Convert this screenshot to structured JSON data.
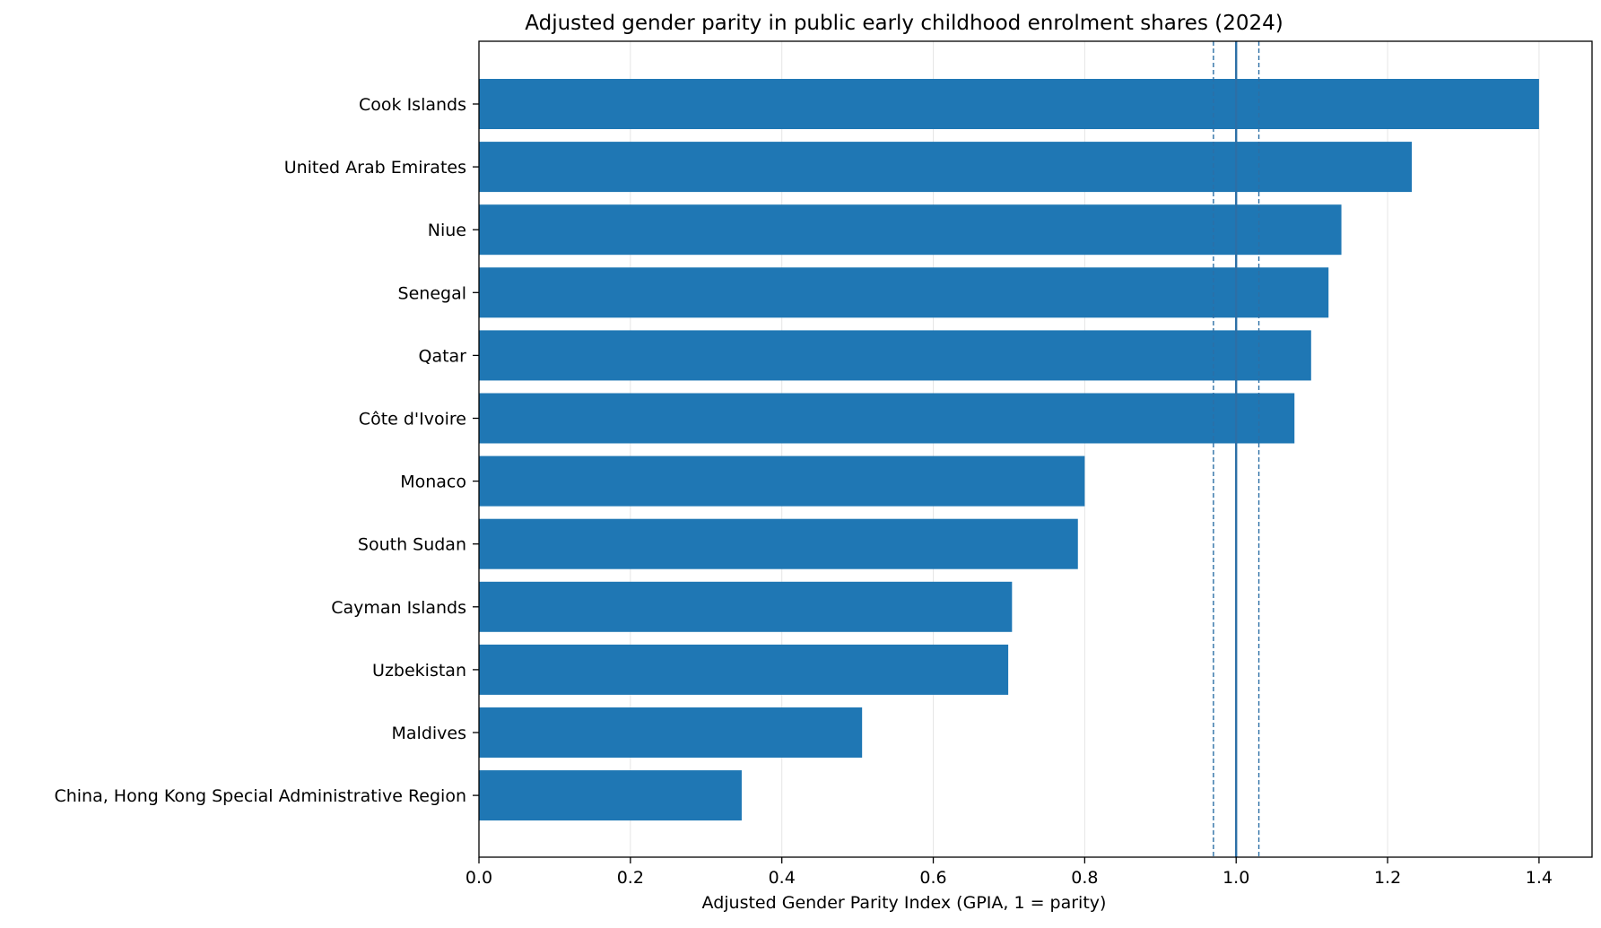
{
  "chart_data": {
    "type": "bar",
    "orientation": "horizontal",
    "title": "Adjusted gender parity in public early childhood enrolment shares (2024)",
    "xlabel": "Adjusted Gender Parity Index (GPIA, 1 = parity)",
    "ylabel": "",
    "xlim": [
      0,
      1.47
    ],
    "x_ticks": [
      0.0,
      0.2,
      0.4,
      0.6,
      0.8,
      1.0,
      1.2,
      1.4
    ],
    "x_tick_labels": [
      "0.0",
      "0.2",
      "0.4",
      "0.6",
      "0.8",
      "1.0",
      "1.2",
      "1.4"
    ],
    "grid": "vertical",
    "categories": [
      "Cook Islands",
      "United Arab Emirates",
      "Niue",
      "Senegal",
      "Qatar",
      "Côte d'Ivoire",
      "Monaco",
      "South Sudan",
      "Cayman Islands",
      "Uzbekistan",
      "Maldives",
      "China, Hong Kong Special Administrative Region"
    ],
    "values": [
      1.4,
      1.232,
      1.139,
      1.122,
      1.099,
      1.077,
      0.8,
      0.791,
      0.704,
      0.699,
      0.506,
      0.347
    ],
    "reference_lines": [
      {
        "x": 1.0,
        "style": "solid"
      },
      {
        "x": 0.97,
        "style": "dashed"
      },
      {
        "x": 1.03,
        "style": "dashed"
      }
    ],
    "colors": {
      "bar": "#1f77b4",
      "reference": "#2c6fa6",
      "grid": "#e6e6e6",
      "axis": "#000000"
    }
  }
}
